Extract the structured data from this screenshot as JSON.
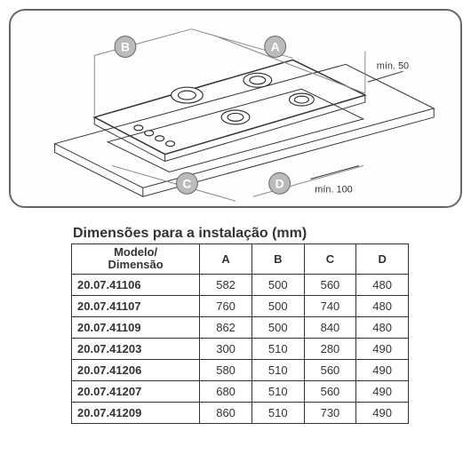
{
  "diagram": {
    "badges": {
      "A": "A",
      "B": "B",
      "C": "C",
      "D": "D"
    },
    "annot_top": "mín. 50",
    "annot_bottom": "mín. 100",
    "badge_fill": "#bbbbbb",
    "badge_stroke": "#666666",
    "line_color": "#333333",
    "frame_border": "#666666",
    "background": "#ffffff"
  },
  "table": {
    "title": "Dimensões para a instalação (mm)",
    "header_model_l1": "Modelo/",
    "header_model_l2": "Dimensão",
    "columns": [
      "A",
      "B",
      "C",
      "D"
    ],
    "rows": [
      {
        "model": "20.07.41106",
        "A": "582",
        "B": "500",
        "C": "560",
        "D": "480"
      },
      {
        "model": "20.07.41107",
        "A": "760",
        "B": "500",
        "C": "740",
        "D": "480"
      },
      {
        "model": "20.07.41109",
        "A": "862",
        "B": "500",
        "C": "840",
        "D": "480"
      },
      {
        "model": "20.07.41203",
        "A": "300",
        "B": "510",
        "C": "280",
        "D": "490"
      },
      {
        "model": "20.07.41206",
        "A": "580",
        "B": "510",
        "C": "560",
        "D": "490"
      },
      {
        "model": "20.07.41207",
        "A": "680",
        "B": "510",
        "C": "560",
        "D": "490"
      },
      {
        "model": "20.07.41209",
        "A": "860",
        "B": "510",
        "C": "730",
        "D": "490"
      }
    ],
    "border_color": "#333333",
    "font_size": 13,
    "title_font_size": 16
  }
}
